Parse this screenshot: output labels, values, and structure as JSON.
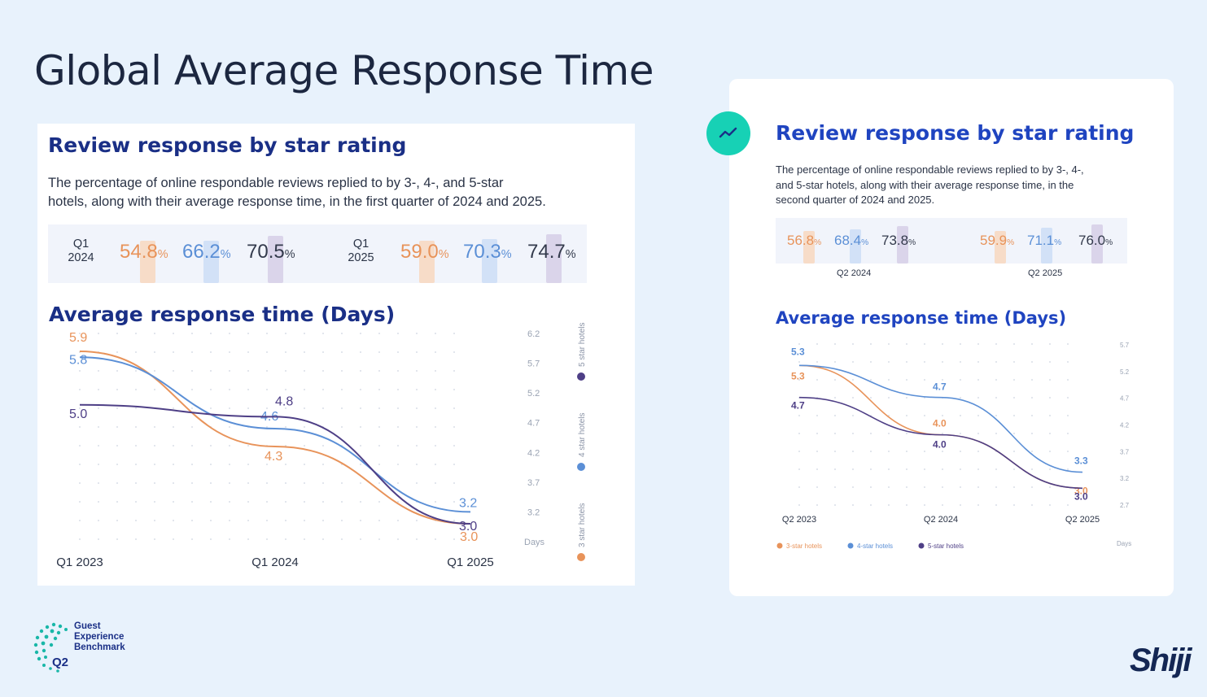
{
  "slide": {
    "title": "Global Average Response Time"
  },
  "left_card": {
    "heading": "Review response by star rating",
    "description_line1": "The percentage of online respondable reviews replied to by 3-, 4-, and 5-star",
    "description_line2": "hotels, along with their average response time, in the first quarter of 2024 and 2025.",
    "groups": [
      {
        "quarter_line1": "Q1",
        "quarter_line2": "2024",
        "values": [
          {
            "num": "54.8",
            "unit": "%"
          },
          {
            "num": "66.2",
            "unit": "%"
          },
          {
            "num": "70.5",
            "unit": "%"
          }
        ]
      },
      {
        "quarter_line1": "Q1",
        "quarter_line2": "2025",
        "values": [
          {
            "num": "59.0",
            "unit": "%"
          },
          {
            "num": "70.3",
            "unit": "%"
          },
          {
            "num": "74.7",
            "unit": "%"
          }
        ]
      }
    ],
    "chart_title": "Average response time (Days)"
  },
  "right_card": {
    "heading": "Review response by star rating",
    "description_line1": "The percentage of online respondable reviews replied to by 3-, 4-,",
    "description_line2": "and 5-star hotels, along with their average response time, in the",
    "description_line3": "second quarter of 2024 and 2025.",
    "groups": [
      {
        "label": "Q2 2024",
        "values": [
          {
            "num": "56.8",
            "unit": "%"
          },
          {
            "num": "68.4",
            "unit": "%"
          },
          {
            "num": "73.8",
            "unit": "%"
          }
        ]
      },
      {
        "label": "Q2 2025",
        "values": [
          {
            "num": "59.9",
            "unit": "%"
          },
          {
            "num": "71.1",
            "unit": "%"
          },
          {
            "num": "76.0",
            "unit": "%"
          }
        ]
      }
    ],
    "chart_title": "Average response time (Days)"
  },
  "colors": {
    "three_star": "#e8935a",
    "four_star": "#5b8fd6",
    "five_star": "#4e3f86",
    "heading": "#1a2f86",
    "accent_badge": "#17d1b5"
  },
  "chart_data": [
    {
      "type": "line",
      "x": [
        "Q1 2023",
        "Q1 2024",
        "Q1 2025"
      ],
      "series": [
        {
          "name": "3 star hotels",
          "values": [
            5.9,
            4.3,
            3.0
          ]
        },
        {
          "name": "4 star hotels",
          "values": [
            5.8,
            4.6,
            3.2
          ]
        },
        {
          "name": "5 star hotels",
          "values": [
            5.0,
            4.8,
            3.0
          ]
        }
      ],
      "y_ticks": [
        "6.2",
        "5.7",
        "5.2",
        "4.7",
        "4.2",
        "3.7",
        "3.2"
      ],
      "ylabel": "Days",
      "ylim": [
        2.7,
        6.2
      ],
      "grid": "dotted",
      "legend_position": "right-vertical"
    },
    {
      "type": "line",
      "x": [
        "Q2 2023",
        "Q2 2024",
        "Q2 2025"
      ],
      "series": [
        {
          "name": "3-star hotels",
          "values": [
            5.3,
            4.0,
            3.0
          ]
        },
        {
          "name": "4-star hotels",
          "values": [
            5.3,
            4.7,
            3.3
          ]
        },
        {
          "name": "5-star hotels",
          "values": [
            4.7,
            4.0,
            3.0
          ]
        }
      ],
      "y_ticks": [
        "5.7",
        "5.2",
        "4.7",
        "4.2",
        "3.7",
        "3.2",
        "2.7"
      ],
      "ylabel": "Days",
      "ylim": [
        2.7,
        5.7
      ],
      "grid": "dotted",
      "legend_position": "bottom"
    }
  ],
  "logos": {
    "benchmark_line1": "Guest",
    "benchmark_line2": "Experience",
    "benchmark_line3": "Benchmark",
    "benchmark_quarter": "Q2",
    "brand": "Shiji"
  }
}
